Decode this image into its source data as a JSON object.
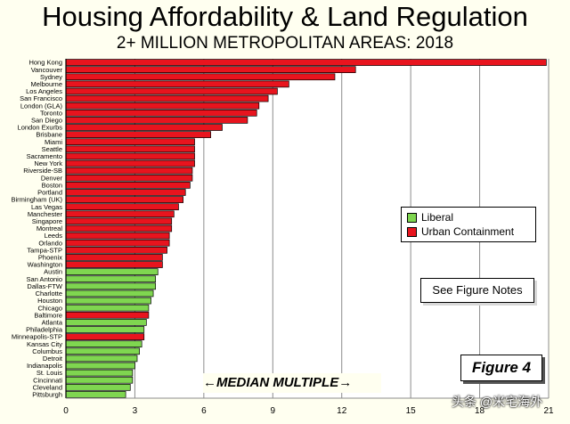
{
  "chart_data": {
    "type": "bar",
    "orientation": "horizontal",
    "title": "Housing Affordability & Land Regulation",
    "subtitle": "2+ MILLION METROPOLITAN AREAS: 2018",
    "xlabel": "MEDIAN MULTIPLE",
    "xlim": [
      0,
      21
    ],
    "xticks": [
      "0",
      "3",
      "6",
      "9",
      "12",
      "15",
      "18",
      "21"
    ],
    "grid": "vertical",
    "legend_position": "middle-right",
    "legend": [
      {
        "label": "Liberal",
        "color": "#7fd650"
      },
      {
        "label": "Urban Containment",
        "color": "#e8141e"
      }
    ],
    "categories": [
      "Hong Kong",
      "Vancouver",
      "Sydney",
      "Melbourne",
      "Los Angeles",
      "San Francisco",
      "London (GLA)",
      "Toronto",
      "San Diego",
      "London Exurbs",
      "Brisbane",
      "Miami",
      "Seattle",
      "Sacramento",
      "New York",
      "Riverside-SB",
      "Denver",
      "Boston",
      "Portland",
      "Birmingham (UK)",
      "Las Vegas",
      "Manchester",
      "Singapore",
      "Montreal",
      "Leeds",
      "Orlando",
      "Tampa-STP",
      "Phoenix",
      "Washington",
      "Austin",
      "San Antonio",
      "Dallas-FTW",
      "Charlotte",
      "Houston",
      "Chicago",
      "Baltimore",
      "Atlanta",
      "Philadelphia",
      "Minneapolis-STP",
      "Kansas City",
      "Columbus",
      "Detroit",
      "Indianapolis",
      "St. Louis",
      "Cincinnati",
      "Cleveland",
      "Pittsburgh"
    ],
    "values": [
      20.9,
      12.6,
      11.7,
      9.7,
      9.2,
      8.8,
      8.4,
      8.3,
      7.9,
      6.8,
      6.3,
      5.6,
      5.6,
      5.6,
      5.6,
      5.5,
      5.5,
      5.4,
      5.2,
      5.1,
      4.9,
      4.7,
      4.6,
      4.6,
      4.5,
      4.5,
      4.4,
      4.2,
      4.2,
      4.0,
      3.9,
      3.9,
      3.8,
      3.7,
      3.6,
      3.6,
      3.5,
      3.4,
      3.4,
      3.3,
      3.2,
      3.1,
      3.0,
      2.9,
      2.9,
      2.8,
      2.6
    ],
    "groups": [
      "Urban Containment",
      "Urban Containment",
      "Urban Containment",
      "Urban Containment",
      "Urban Containment",
      "Urban Containment",
      "Urban Containment",
      "Urban Containment",
      "Urban Containment",
      "Urban Containment",
      "Urban Containment",
      "Urban Containment",
      "Urban Containment",
      "Urban Containment",
      "Urban Containment",
      "Urban Containment",
      "Urban Containment",
      "Urban Containment",
      "Urban Containment",
      "Urban Containment",
      "Urban Containment",
      "Urban Containment",
      "Urban Containment",
      "Urban Containment",
      "Urban Containment",
      "Urban Containment",
      "Urban Containment",
      "Urban Containment",
      "Urban Containment",
      "Liberal",
      "Liberal",
      "Liberal",
      "Liberal",
      "Liberal",
      "Liberal",
      "Urban Containment",
      "Liberal",
      "Liberal",
      "Urban Containment",
      "Liberal",
      "Liberal",
      "Liberal",
      "Liberal",
      "Liberal",
      "Liberal",
      "Liberal",
      "Liberal"
    ]
  },
  "notes_button": "See Figure Notes",
  "figure_label": "Figure 4",
  "median_label": "←MEDIAN MULTIPLE→",
  "watermark": "头条 @米宅海外"
}
